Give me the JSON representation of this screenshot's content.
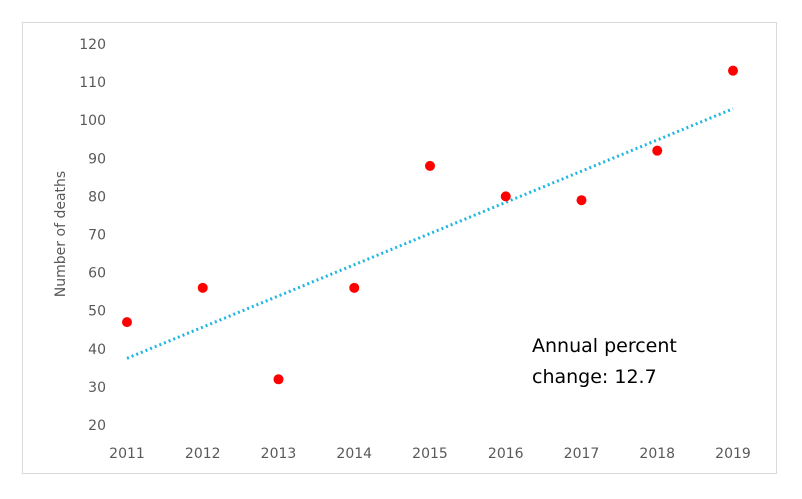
{
  "chart_data": {
    "type": "scatter",
    "title": "",
    "xlabel": "",
    "ylabel": "Number of deaths",
    "xlim": [
      2011,
      2019
    ],
    "ylim": [
      20,
      120
    ],
    "y_ticks": [
      20,
      30,
      40,
      50,
      60,
      70,
      80,
      90,
      100,
      110,
      120
    ],
    "x_ticks": [
      2011,
      2012,
      2013,
      2014,
      2015,
      2016,
      2017,
      2018,
      2019
    ],
    "grid": false,
    "series": [
      {
        "x": [
          2011,
          2012,
          2013,
          2014,
          2015,
          2016,
          2017,
          2018,
          2019
        ],
        "y": [
          47,
          56,
          32,
          56,
          88,
          80,
          79,
          92,
          113
        ],
        "color": "#ff0000",
        "marker": "circle"
      }
    ],
    "trendline": {
      "style": "dotted",
      "color": "#1fb6e0",
      "x": [
        2011,
        2019
      ],
      "y": [
        37.5,
        103
      ]
    },
    "annotation": {
      "lines": [
        "Annual percent",
        "change: 12.7"
      ]
    }
  }
}
